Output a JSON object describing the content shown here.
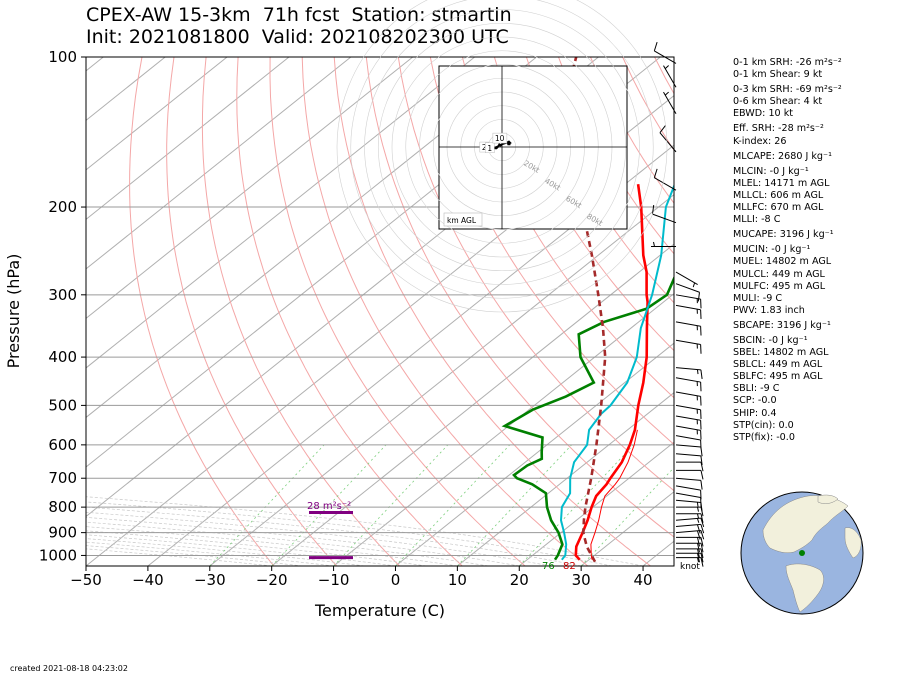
{
  "header": {
    "title_line1": "CPEX-AW 15-3km  71h fcst  Station: stmartin",
    "title_line2": "Init: 2021081800  Valid: 202108202300 UTC"
  },
  "footer": {
    "created": "created 2021-08-18 04:23:02"
  },
  "stats": [
    {
      "label": "0-1 km SRH: -26 m²s⁻²"
    },
    {
      "label": "0-1 km Shear: 9 kt"
    },
    {
      "label": "0-3 km SRH: -69 m²s⁻²"
    },
    {
      "label": "0-6 km Shear: 4 kt"
    },
    {
      "label": "EBWD: 10 kt"
    },
    {
      "label": "Eff. SRH: -28 m²s⁻²"
    },
    {
      "label": "K-index: 26"
    },
    {
      "label": "MLCAPE: 2680 J kg⁻¹"
    },
    {
      "label": "MLCIN: -0 J kg⁻¹"
    },
    {
      "label": "MLEL: 14171 m AGL"
    },
    {
      "label": "MLLCL: 606 m AGL"
    },
    {
      "label": "MLLFC: 670 m AGL"
    },
    {
      "label": "MLLI: -8 C"
    },
    {
      "label": "MUCAPE: 3196 J kg⁻¹"
    },
    {
      "label": "MUCIN: -0 J kg⁻¹"
    },
    {
      "label": "MUEL: 14802 m AGL"
    },
    {
      "label": "MULCL: 449 m AGL"
    },
    {
      "label": "MULFC: 495 m AGL"
    },
    {
      "label": "MULI: -9 C"
    },
    {
      "label": "PWV: 1.83 inch"
    },
    {
      "label": "SBCAPE: 3196 J kg⁻¹"
    },
    {
      "label": "SBCIN: -0 J kg⁻¹"
    },
    {
      "label": "SBEL: 14802 m AGL"
    },
    {
      "label": "SBLCL: 449 m AGL"
    },
    {
      "label": "SBLFC: 495 m AGL"
    },
    {
      "label": "SBLI: -9 C"
    },
    {
      "label": "SCP: -0.0"
    },
    {
      "label": "SHIP: 0.4"
    },
    {
      "label": "STP(cin): 0.0"
    },
    {
      "label": "STP(fix): -0.0"
    }
  ],
  "chart_data": {
    "type": "line",
    "xlabel": "Temperature (C)",
    "ylabel": "Pressure (hPa)",
    "xlim": [
      -50,
      45
    ],
    "ylim": [
      1050,
      100
    ],
    "y_scale": "log",
    "x_ticks": [
      -50,
      -40,
      -30,
      -20,
      -10,
      0,
      10,
      20,
      30,
      40
    ],
    "y_ticks": [
      100,
      200,
      300,
      400,
      500,
      600,
      700,
      800,
      900,
      1000
    ],
    "x_tick_labels": [
      "−50",
      "−40",
      "−30",
      "−20",
      "−10",
      "0",
      "10",
      "20",
      "30",
      "40"
    ],
    "y_tick_labels": [
      "100",
      "200",
      "300",
      "400",
      "500",
      "600",
      "700",
      "800",
      "900",
      "1000"
    ],
    "wind_unit_label": "knot",
    "surface_temp_label": "82",
    "surface_dewpoint_label": "76",
    "srh_label": "28 m²s⁻²",
    "series": [
      {
        "role": "temperature",
        "color": "#ff0000",
        "points": [
          [
            1020,
            28.5
          ],
          [
            1000,
            27
          ],
          [
            960,
            25.3
          ],
          [
            900,
            23.5
          ],
          [
            850,
            21.8
          ],
          [
            800,
            19.8
          ],
          [
            760,
            18.3
          ],
          [
            720,
            17.6
          ],
          [
            700,
            17.0
          ],
          [
            650,
            15.6
          ],
          [
            600,
            13.4
          ],
          [
            560,
            11.2
          ],
          [
            500,
            6.8
          ],
          [
            450,
            3.0
          ],
          [
            400,
            -1.6
          ],
          [
            350,
            -7.4
          ],
          [
            310,
            -12.6
          ],
          [
            300,
            -14.2
          ],
          [
            270,
            -18.8
          ],
          [
            250,
            -22.7
          ],
          [
            200,
            -32.8
          ],
          [
            180,
            -37.9
          ]
        ]
      },
      {
        "role": "dewpoint",
        "color": "#008000",
        "points": [
          [
            1020,
            24.5
          ],
          [
            1000,
            24.1
          ],
          [
            950,
            22.6
          ],
          [
            900,
            19.6
          ],
          [
            850,
            15.9
          ],
          [
            800,
            12.6
          ],
          [
            750,
            9.6
          ],
          [
            720,
            5.6
          ],
          [
            700,
            1.9
          ],
          [
            690,
            0.8
          ],
          [
            660,
            1.0
          ],
          [
            640,
            2.0
          ],
          [
            620,
            0.6
          ],
          [
            580,
            -2.2
          ],
          [
            550,
            -10.6
          ],
          [
            510,
            -9.4
          ],
          [
            480,
            -6.7
          ],
          [
            450,
            -5.0
          ],
          [
            400,
            -12.3
          ],
          [
            360,
            -17.2
          ],
          [
            340,
            -15.6
          ],
          [
            320,
            -11.4
          ],
          [
            300,
            -10.9
          ],
          [
            270,
            -13.9
          ],
          [
            250,
            -16.9
          ],
          [
            220,
            -22.7
          ],
          [
            200,
            -27.0
          ],
          [
            170,
            -32.4
          ],
          [
            150,
            -34.2
          ],
          [
            125,
            -35.1
          ],
          [
            110,
            -34.6
          ],
          [
            100,
            -35.2
          ]
        ]
      },
      {
        "role": "wetbulb",
        "color": "#00bbcc",
        "points": [
          [
            1020,
            25.6
          ],
          [
            1000,
            25.3
          ],
          [
            950,
            23.2
          ],
          [
            900,
            20.5
          ],
          [
            850,
            17.5
          ],
          [
            800,
            15.0
          ],
          [
            750,
            13.5
          ],
          [
            700,
            10.5
          ],
          [
            650,
            7.9
          ],
          [
            600,
            6.5
          ],
          [
            560,
            3.8
          ],
          [
            520,
            2.5
          ],
          [
            500,
            2.3
          ],
          [
            450,
            0.4
          ],
          [
            400,
            -3.2
          ],
          [
            350,
            -8.4
          ],
          [
            300,
            -13.3
          ],
          [
            250,
            -19.8
          ],
          [
            200,
            -28.8
          ],
          [
            170,
            -33.7
          ],
          [
            150,
            -34.0
          ],
          [
            130,
            -34.8
          ],
          [
            110,
            -32.9
          ],
          [
            100,
            -32.7
          ]
        ]
      },
      {
        "role": "parcel",
        "color": "#a52a2a",
        "dashed": true,
        "points": [
          [
            1030,
            31.4
          ],
          [
            960,
            27.0
          ],
          [
            900,
            23.6
          ],
          [
            850,
            21.2
          ],
          [
            800,
            18.8
          ],
          [
            700,
            13.9
          ],
          [
            600,
            8.0
          ],
          [
            500,
            0.8
          ],
          [
            400,
            -8.3
          ],
          [
            350,
            -14.5
          ],
          [
            300,
            -22.0
          ],
          [
            250,
            -31.0
          ],
          [
            220,
            -37.5
          ],
          [
            200,
            -42.6
          ],
          [
            150,
            -57.5
          ],
          [
            130,
            -63.7
          ],
          [
            120,
            -67.3
          ],
          [
            100,
            -73.6
          ]
        ]
      },
      {
        "role": "virtual_temperature",
        "color": "#ff0000",
        "thin": true,
        "points": [
          [
            1020,
            30.5
          ],
          [
            1000,
            29.5
          ],
          [
            950,
            27.2
          ],
          [
            900,
            25.5
          ],
          [
            850,
            23.6
          ],
          [
            800,
            21.4
          ],
          [
            760,
            19.7
          ],
          [
            720,
            19.0
          ],
          [
            700,
            18.5
          ],
          [
            650,
            16.6
          ],
          [
            600,
            14.1
          ],
          [
            560,
            11.6
          ]
        ]
      }
    ],
    "srh_layers_hpa": [
      820,
      1010
    ],
    "winds": [
      {
        "p": 1010,
        "dir": 90,
        "spd": 15
      },
      {
        "p": 990,
        "dir": 90,
        "spd": 20
      },
      {
        "p": 970,
        "dir": 90,
        "spd": 20
      },
      {
        "p": 945,
        "dir": 90,
        "spd": 20
      },
      {
        "p": 920,
        "dir": 90,
        "spd": 20
      },
      {
        "p": 900,
        "dir": 85,
        "spd": 20
      },
      {
        "p": 875,
        "dir": 85,
        "spd": 20
      },
      {
        "p": 850,
        "dir": 85,
        "spd": 15
      },
      {
        "p": 825,
        "dir": 90,
        "spd": 15
      },
      {
        "p": 800,
        "dir": 90,
        "spd": 15
      },
      {
        "p": 775,
        "dir": 95,
        "spd": 15
      },
      {
        "p": 750,
        "dir": 100,
        "spd": 10
      },
      {
        "p": 725,
        "dir": 100,
        "spd": 10
      },
      {
        "p": 700,
        "dir": 95,
        "spd": 10
      },
      {
        "p": 675,
        "dir": 90,
        "spd": 10
      },
      {
        "p": 650,
        "dir": 90,
        "spd": 10
      },
      {
        "p": 625,
        "dir": 95,
        "spd": 10
      },
      {
        "p": 600,
        "dir": 95,
        "spd": 10
      },
      {
        "p": 575,
        "dir": 100,
        "spd": 10
      },
      {
        "p": 550,
        "dir": 100,
        "spd": 15
      },
      {
        "p": 525,
        "dir": 100,
        "spd": 15
      },
      {
        "p": 500,
        "dir": 100,
        "spd": 15
      },
      {
        "p": 470,
        "dir": 100,
        "spd": 15
      },
      {
        "p": 440,
        "dir": 100,
        "spd": 15
      },
      {
        "p": 420,
        "dir": 95,
        "spd": 15
      },
      {
        "p": 370,
        "dir": 100,
        "spd": 15
      },
      {
        "p": 340,
        "dir": 100,
        "spd": 15
      },
      {
        "p": 315,
        "dir": 100,
        "spd": 15
      },
      {
        "p": 300,
        "dir": 100,
        "spd": 15
      },
      {
        "p": 285,
        "dir": 110,
        "spd": 10
      },
      {
        "p": 270,
        "dir": 120,
        "spd": 5
      },
      {
        "p": 240,
        "dir": 270,
        "spd": 5
      },
      {
        "p": 215,
        "dir": 290,
        "spd": 10
      },
      {
        "p": 185,
        "dir": 300,
        "spd": 10
      },
      {
        "p": 155,
        "dir": 320,
        "spd": 10
      },
      {
        "p": 130,
        "dir": 330,
        "spd": 5
      },
      {
        "p": 115,
        "dir": 330,
        "spd": 5
      },
      {
        "p": 103,
        "dir": 300,
        "spd": 10
      }
    ],
    "hodograph": {
      "label": "km AGL",
      "ring_labels": [
        "20kt",
        "40kt",
        "60kt",
        "80kt"
      ],
      "height_labels": [
        "2",
        "1",
        "10"
      ],
      "range_kt": 80,
      "trace_kt": [
        [
          -14,
          2
        ],
        [
          -10,
          1
        ],
        [
          -7,
          0
        ],
        [
          -5,
          -1
        ],
        [
          -4,
          -1
        ],
        [
          -3,
          0
        ],
        [
          -2,
          2
        ],
        [
          -1,
          1
        ],
        [
          0,
          2
        ],
        [
          3,
          3
        ],
        [
          5,
          4
        ],
        [
          6,
          3
        ],
        [
          4,
          2
        ],
        [
          6,
          2
        ],
        [
          4,
          3
        ],
        [
          2,
          3
        ],
        [
          0,
          2
        ],
        [
          -2,
          1
        ],
        [
          -4,
          0
        ],
        [
          -7,
          -1
        ],
        [
          -9,
          -2
        ],
        [
          -11,
          -1
        ],
        [
          -13,
          0
        ]
      ]
    },
    "globe": {
      "ocean_color": "#9ab5e0",
      "land_color": "#f2f0dc",
      "marker_color": "#008000"
    }
  }
}
